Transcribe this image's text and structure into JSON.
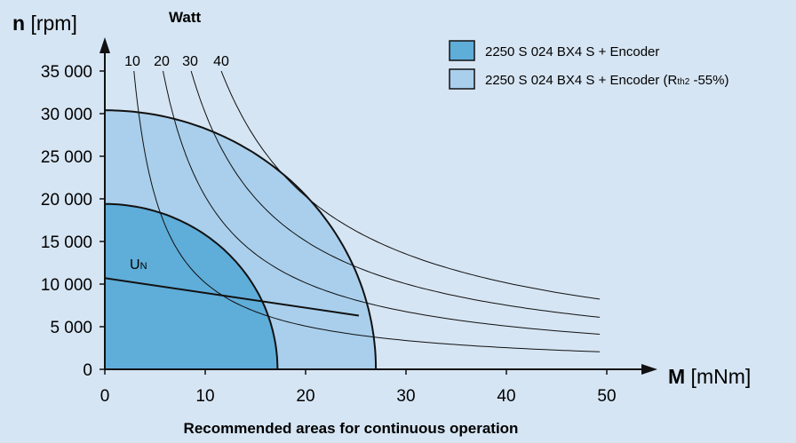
{
  "chart_data": {
    "type": "area",
    "title": "Recommended areas for continuous operation",
    "ylabel": {
      "bold": "n",
      "unit": "[rpm]"
    },
    "xlabel": {
      "bold": "M",
      "unit": "[mNm]"
    },
    "power_label": "Watt",
    "x_ticks": [
      "0",
      "10",
      "20",
      "30",
      "40",
      "50"
    ],
    "y_ticks": [
      "0",
      "5 000",
      "10 000",
      "15 000",
      "20 000",
      "25 000",
      "30 000",
      "35 000"
    ],
    "xlim": [
      0,
      55
    ],
    "ylim": [
      0,
      36000
    ],
    "colors": {
      "background": "#d6e5f3",
      "area_standard": "#5fadd9",
      "area_reduced": "#a9cfec",
      "line": "#111111"
    },
    "legend": [
      {
        "label": "2250 S 024 BX4 S + Encoder",
        "color": "#5fadd9"
      },
      {
        "label_main": "2250 S 024 BX4 S + Encoder (R",
        "label_sub": "th2",
        "label_tail": " -55%)",
        "color": "#a9cfec"
      }
    ],
    "series": [
      {
        "name": "2250 S 024 BX4 S + Encoder",
        "shape": "elliptical boundary",
        "n_at_zero_torque": 19400,
        "torque_at_zero_speed": 17.2
      },
      {
        "name": "2250 S 024 BX4 S + Encoder (Rth2 -55%)",
        "shape": "elliptical boundary",
        "n_at_zero_torque": 30400,
        "torque_at_zero_speed": 27.0
      }
    ],
    "un_line": {
      "label": "U",
      "label_sub": "N",
      "points": [
        [
          0,
          10700
        ],
        [
          25.3,
          6300
        ]
      ]
    },
    "power_curves": [
      {
        "label": "10",
        "watt": 10,
        "x_range": [
          2.9,
          49.3
        ]
      },
      {
        "label": "20",
        "watt": 20,
        "x_range": [
          5.8,
          49.3
        ]
      },
      {
        "label": "30",
        "watt": 30,
        "x_range": [
          8.6,
          49.3
        ]
      },
      {
        "label": "40",
        "watt": 40,
        "x_range": [
          11.6,
          49.3
        ]
      }
    ]
  }
}
